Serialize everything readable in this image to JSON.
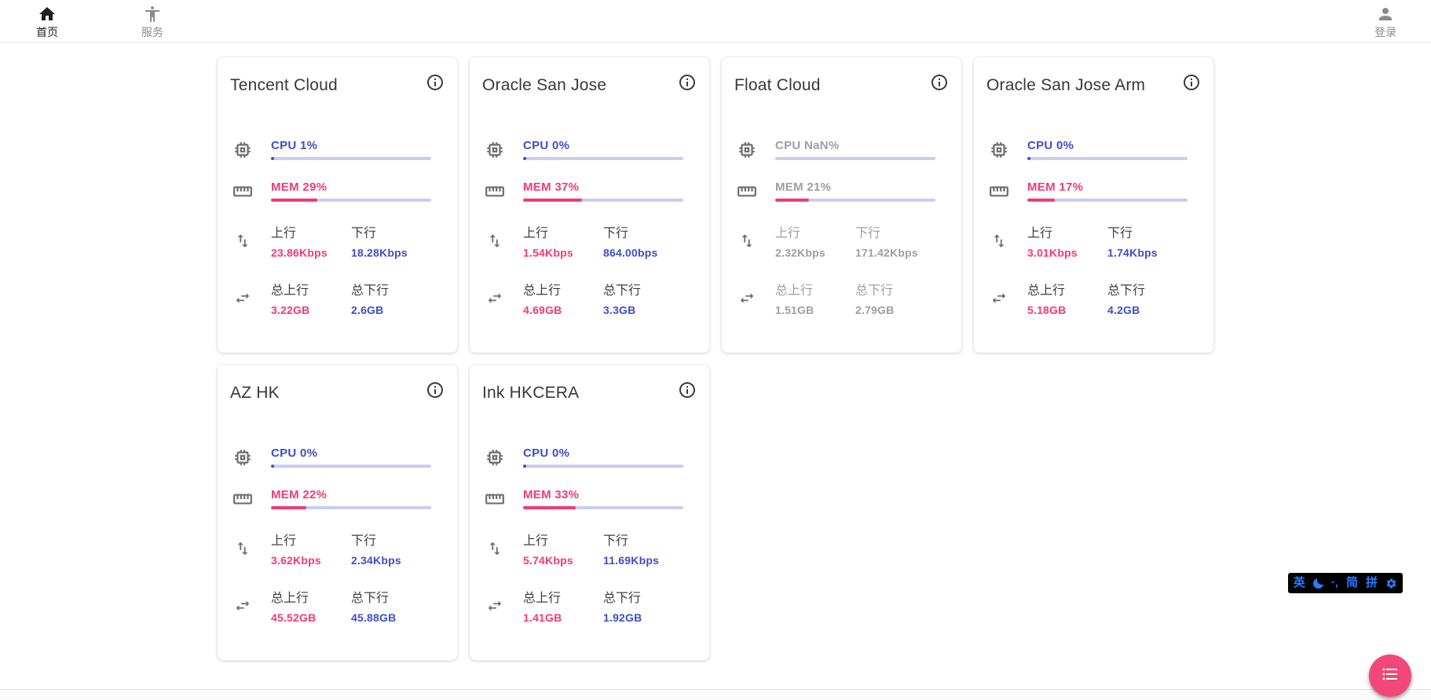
{
  "nav": {
    "items": [
      {
        "label": "首页",
        "icon": "home-icon",
        "active": true
      },
      {
        "label": "服务",
        "icon": "accessibility-icon",
        "active": false
      }
    ],
    "login": {
      "label": "登录",
      "icon": "person-icon"
    }
  },
  "labels": {
    "up": "上行",
    "down": "下行",
    "total_up": "总上行",
    "total_down": "总下行"
  },
  "cards": [
    {
      "title": "Tencent Cloud",
      "offline": false,
      "cpu_label": "CPU 1%",
      "cpu_pct": 1,
      "mem_label": "MEM 29%",
      "mem_pct": 29,
      "up_value": "23.86Kbps",
      "down_value": "18.28Kbps",
      "total_up_value": "3.22GB",
      "total_down_value": "2.6GB"
    },
    {
      "title": "Oracle San Jose",
      "offline": false,
      "cpu_label": "CPU 0%",
      "cpu_pct": 0,
      "mem_label": "MEM 37%",
      "mem_pct": 37,
      "up_value": "1.54Kbps",
      "down_value": "864.00bps",
      "total_up_value": "4.69GB",
      "total_down_value": "3.3GB"
    },
    {
      "title": "Float Cloud",
      "offline": true,
      "cpu_label": "CPU NaN%",
      "cpu_pct": 0,
      "mem_label": "MEM 21%",
      "mem_pct": 21,
      "up_value": "2.32Kbps",
      "down_value": "171.42Kbps",
      "total_up_value": "1.51GB",
      "total_down_value": "2.79GB"
    },
    {
      "title": "Oracle San Jose Arm",
      "offline": false,
      "cpu_label": "CPU 0%",
      "cpu_pct": 0,
      "mem_label": "MEM 17%",
      "mem_pct": 17,
      "up_value": "3.01Kbps",
      "down_value": "1.74Kbps",
      "total_up_value": "5.18GB",
      "total_down_value": "4.2GB"
    },
    {
      "title": "AZ HK",
      "offline": false,
      "cpu_label": "CPU 0%",
      "cpu_pct": 0,
      "mem_label": "MEM 22%",
      "mem_pct": 22,
      "up_value": "3.62Kbps",
      "down_value": "2.34Kbps",
      "total_up_value": "45.52GB",
      "total_down_value": "45.88GB"
    },
    {
      "title": "Ink HKCERA",
      "offline": false,
      "cpu_label": "CPU 0%",
      "cpu_pct": 0,
      "mem_label": "MEM 33%",
      "mem_pct": 33,
      "up_value": "5.74Kbps",
      "down_value": "11.69Kbps",
      "total_up_value": "1.41GB",
      "total_down_value": "1.92GB"
    }
  ],
  "ime": {
    "lang": "英",
    "punct": "·‚",
    "simplified": "简",
    "pinyin": "拼"
  },
  "colors": {
    "accent_blue": "#3d4fc4",
    "accent_pink": "#f2397a",
    "bar_track": "#c9cdf0",
    "offline_gray": "#9e9e9e",
    "fab_pink": "#f24879",
    "ime_blue": "#2b7bff"
  }
}
